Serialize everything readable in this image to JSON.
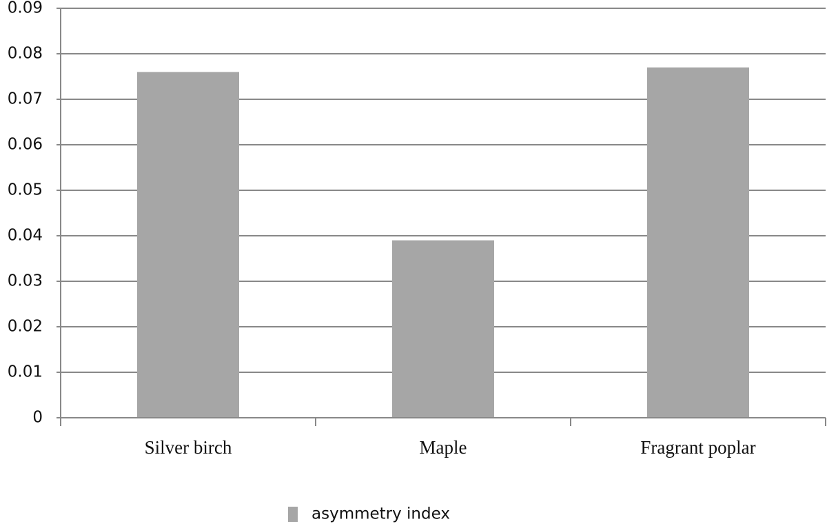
{
  "chart_data": {
    "type": "bar",
    "categories": [
      "Silver birch",
      "Maple",
      "Fragrant poplar"
    ],
    "series": [
      {
        "name": "asymmetry index",
        "color": "#a6a6a6",
        "values": [
          0.076,
          0.039,
          0.077
        ]
      }
    ],
    "ylim": [
      0,
      0.09
    ],
    "yticks": [
      0,
      0.01,
      0.02,
      0.03,
      0.04,
      0.05,
      0.06,
      0.07,
      0.08,
      0.09
    ],
    "grid": true,
    "legend": "bottom"
  }
}
